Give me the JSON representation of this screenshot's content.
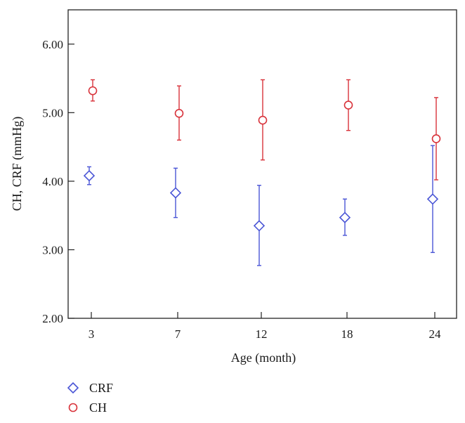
{
  "chart_data": {
    "type": "scatter",
    "title": "",
    "xlabel": "Age (month)",
    "ylabel": "CH, CRF (mmHg)",
    "ylim": [
      2.0,
      6.5
    ],
    "categories": [
      "3",
      "7",
      "12",
      "18",
      "24"
    ],
    "yticks": [
      "2.00",
      "3.00",
      "4.00",
      "5.00",
      "6.00"
    ],
    "grid": false,
    "legend_position": "bottom-left",
    "series": [
      {
        "name": "CRF",
        "marker": "diamond",
        "color": "#4a55d6",
        "values": [
          4.08,
          3.83,
          3.35,
          3.47,
          3.74
        ],
        "upper": [
          4.21,
          4.19,
          3.94,
          3.74,
          4.52
        ],
        "lower": [
          3.95,
          3.47,
          2.77,
          3.21,
          2.96
        ]
      },
      {
        "name": "CH",
        "marker": "circle",
        "color": "#d8323a",
        "values": [
          5.32,
          4.99,
          4.89,
          5.11,
          4.62
        ],
        "upper": [
          5.48,
          5.39,
          5.48,
          5.48,
          5.22
        ],
        "lower": [
          5.17,
          4.6,
          4.31,
          4.74,
          4.02
        ]
      }
    ]
  }
}
